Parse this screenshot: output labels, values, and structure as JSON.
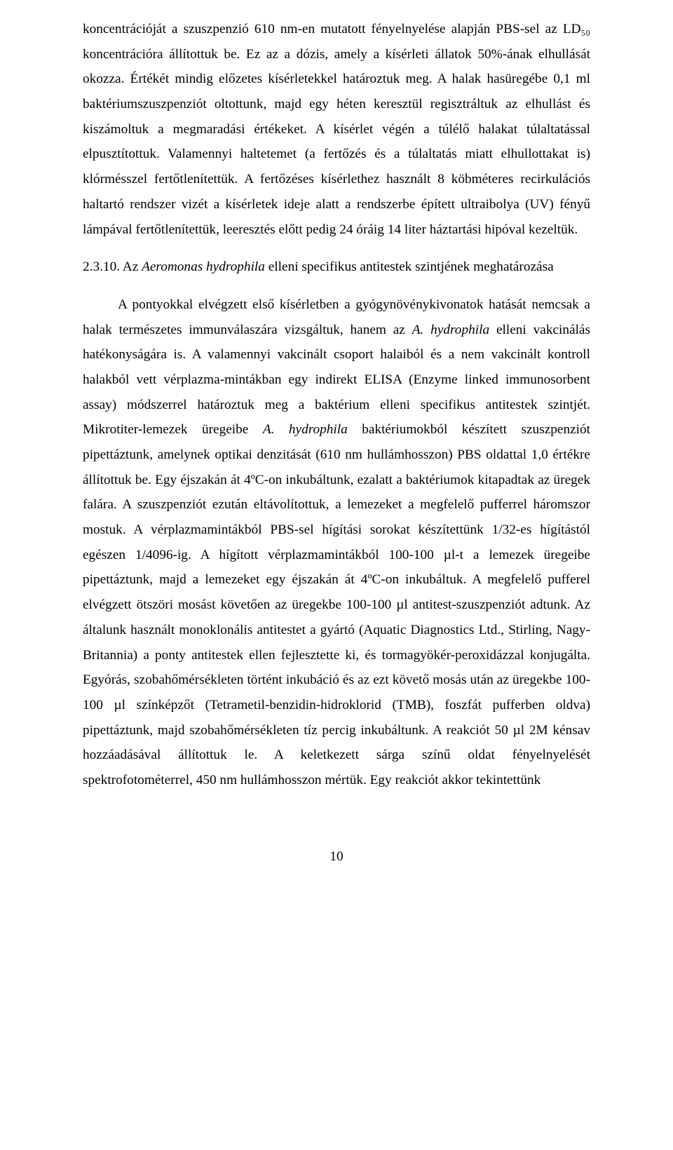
{
  "para1": "koncentrációját a szuszpenzió 610 nm-en mutatott fényelnyelése alapján PBS-sel az LD₅₀ koncentrációra állítottuk be. Ez az a dózis, amely a kísérleti állatok 50%-ának elhullását okozza. Értékét mindig előzetes kísérletekkel határoztuk meg. A halak hasüregébe 0,1 ml baktériumszuszpenziót oltottunk, majd egy héten keresztül regisztráltuk az elhullást és kiszámoltuk a megmaradási értékeket. A kísérlet végén a túlélő halakat túlaltatással elpusztítottuk. Valamennyi haltetemet (a fertőzés és a túlaltatás miatt elhullottakat is) klórmésszel fertőtlenítettük. A fertőzéses kísérlethez használt 8 köbméteres recirkulációs haltartó rendszer vizét a kísérletek ideje alatt a rendszerbe épített ultraibolya (UV) fényű lámpával fertőtlenítettük, leeresztés előtt pedig 24 óráig 14 liter háztartási hipóval kezeltük.",
  "heading_prefix": "2.3.10. Az ",
  "heading_italic": "Aeromonas hydrophila",
  "heading_suffix": " elleni specifikus antitestek szintjének meghatározása",
  "para2_a": "A pontyokkal elvégzett első kísérletben a gyógynövénykivonatok hatását nemcsak a halak természetes immunválaszára vizsgáltuk, hanem az ",
  "para2_i1": "A. hydrophila",
  "para2_b": " elleni vakcinálás hatékonyságára is. A valamennyi vakcinált csoport halaiból és a nem vakcinált kontroll halakból vett vérplazma-mintákban egy indirekt ELISA (Enzyme linked immunosorbent assay) módszerrel határoztuk meg a baktérium elleni specifikus antitestek szintjét. Mikrotiter-lemezek üregeibe ",
  "para2_i2": "A. hydrophila",
  "para2_c": " baktériumokból készített szuszpenziót pipettáztunk, amelynek optikai denzitását (610 nm hullámhosszon) PBS oldattal 1,0 értékre állítottuk be. Egy éjszakán át 4ºC-on inkubáltunk, ezalatt a baktériumok kitapadtak az üregek falára. A szuszpenziót ezután eltávolítottuk, a lemezeket a megfelelő pufferrel háromszor mostuk. A vérplazmamintákból PBS-sel hígítási sorokat készítettünk 1/32-es hígítástól egészen 1/4096-ig. A hígított vérplazmamintákból 100-100 µl-t a lemezek üregeibe pipettáztunk, majd a lemezeket egy éjszakán át 4ºC-on inkubáltuk. A megfelelő pufferel elvégzett ötszöri mosást követően az üregekbe 100-100 µl antitest-szuszpenziót adtunk. Az általunk használt monoklonális antitestet a gyártó (Aquatic Diagnostics Ltd., Stirling, Nagy-Britannia) a ponty antitestek ellen fejlesztette ki, és tormagyökér-peroxidázzal konjugálta. Egyórás, szobahőmérsékleten történt inkubáció és az ezt követő mosás után az üregekbe 100-100 µl színképzőt (Tetrametil-benzidin-hidroklorid (TMB), foszfát pufferben oldva) pipettáztunk, majd szobahőmérsékleten tíz percig inkubáltunk. A reakciót 50 µl 2M kénsav hozzáadásával állítottuk le. A keletkezett sárga színű oldat fényelnyelését spektrofotométerrel, 450 nm hullámhosszon mértük. Egy reakciót akkor tekintettünk",
  "pagenum": "10"
}
